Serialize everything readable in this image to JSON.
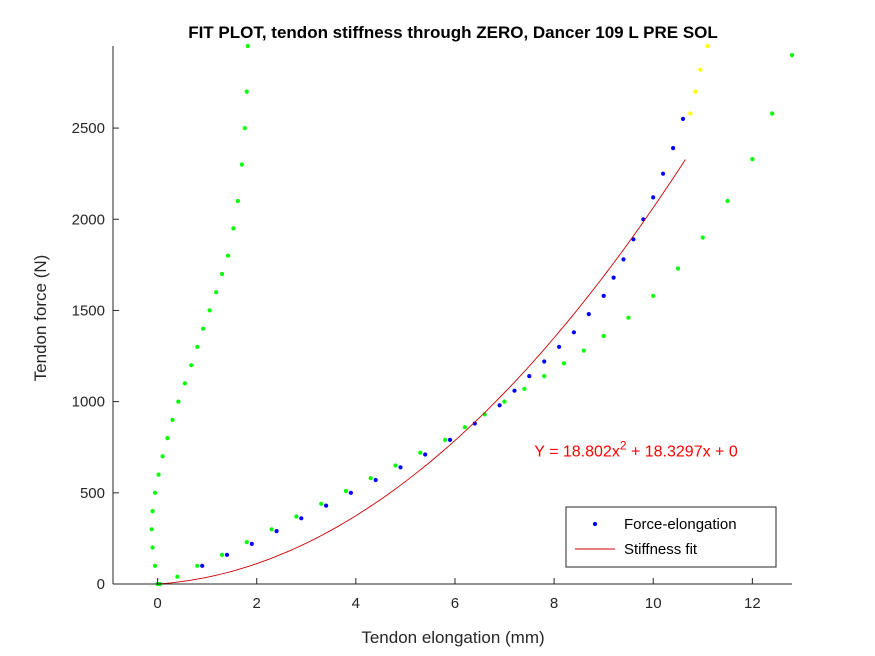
{
  "chart_data": {
    "type": "scatter",
    "title": "FIT PLOT, tendon stiffness through ZERO, Dancer 109 L PRE SOL",
    "xlabel": "Tendon elongation (mm)",
    "ylabel": "Tendon force (N)",
    "xlim": [
      -0.9,
      12.8
    ],
    "ylim": [
      0,
      2950
    ],
    "xticks": [
      0,
      2,
      4,
      6,
      8,
      10,
      12
    ],
    "yticks": [
      0,
      500,
      1000,
      1500,
      2000,
      2500
    ],
    "grid": false,
    "legend_position": "bottom-right",
    "legend": [
      {
        "label": "Force-elongation",
        "marker": "dot",
        "color": "#0000ff"
      },
      {
        "label": "Stiffness fit",
        "marker": "line",
        "color": "#cc0000"
      }
    ],
    "annotation": {
      "prefix": "Y = 18.802x",
      "superscript": "2",
      "suffix": " + 18.3297x + 0",
      "x": 7.6,
      "y": 700,
      "color": "#ff0000"
    },
    "fit": {
      "a": 18.802,
      "b": 18.3297,
      "c": 0,
      "x_range": [
        0,
        10.65
      ],
      "color": "#cc0000"
    },
    "series": [
      {
        "color": "#00ff00",
        "x": [
          0,
          -0.05,
          -0.1,
          -0.12,
          -0.1,
          -0.05,
          0.02,
          0.1,
          0.2,
          0.3,
          0.42,
          0.55,
          0.68,
          0.8,
          0.92,
          1.05,
          1.18,
          1.3,
          1.42,
          1.53,
          1.62,
          1.7,
          1.76,
          1.8,
          1.82
        ],
        "y": [
          0,
          100,
          200,
          300,
          400,
          500,
          600,
          700,
          800,
          900,
          1000,
          1100,
          1200,
          1300,
          1400,
          1500,
          1600,
          1700,
          1800,
          1950,
          2100,
          2300,
          2500,
          2700,
          2950
        ]
      },
      {
        "color": "#00ff00",
        "x": [
          0.05,
          0.4,
          0.8,
          1.3,
          1.8,
          2.3,
          2.8,
          3.3,
          3.8,
          4.3,
          4.8,
          5.3,
          5.8,
          6.2,
          6.6,
          7.0,
          7.4,
          7.8,
          8.2,
          8.6,
          9.0,
          9.5,
          10.0,
          10.5,
          11.0,
          11.5,
          12.0,
          12.4,
          12.8
        ],
        "y": [
          0,
          40,
          100,
          160,
          230,
          300,
          370,
          440,
          510,
          580,
          650,
          720,
          790,
          860,
          930,
          1000,
          1070,
          1140,
          1210,
          1280,
          1360,
          1460,
          1580,
          1730,
          1900,
          2100,
          2330,
          2580,
          2900
        ]
      },
      {
        "color": "#ffff00",
        "x": [
          10.75,
          10.85,
          10.95,
          11.1
        ],
        "y": [
          2580,
          2700,
          2820,
          2950
        ]
      },
      {
        "name": "Force-elongation",
        "color": "#0000ff",
        "x": [
          0.9,
          1.4,
          1.9,
          2.4,
          2.9,
          3.4,
          3.9,
          4.4,
          4.9,
          5.4,
          5.9,
          6.4,
          6.9,
          7.2,
          7.5,
          7.8,
          8.1,
          8.4,
          8.7,
          9.0,
          9.2,
          9.4,
          9.6,
          9.8,
          10.0,
          10.2,
          10.4,
          10.6
        ],
        "y": [
          100,
          160,
          220,
          290,
          360,
          430,
          500,
          570,
          640,
          710,
          790,
          880,
          980,
          1060,
          1140,
          1220,
          1300,
          1380,
          1480,
          1580,
          1680,
          1780,
          1890,
          2000,
          2120,
          2250,
          2390,
          2550
        ]
      }
    ]
  }
}
